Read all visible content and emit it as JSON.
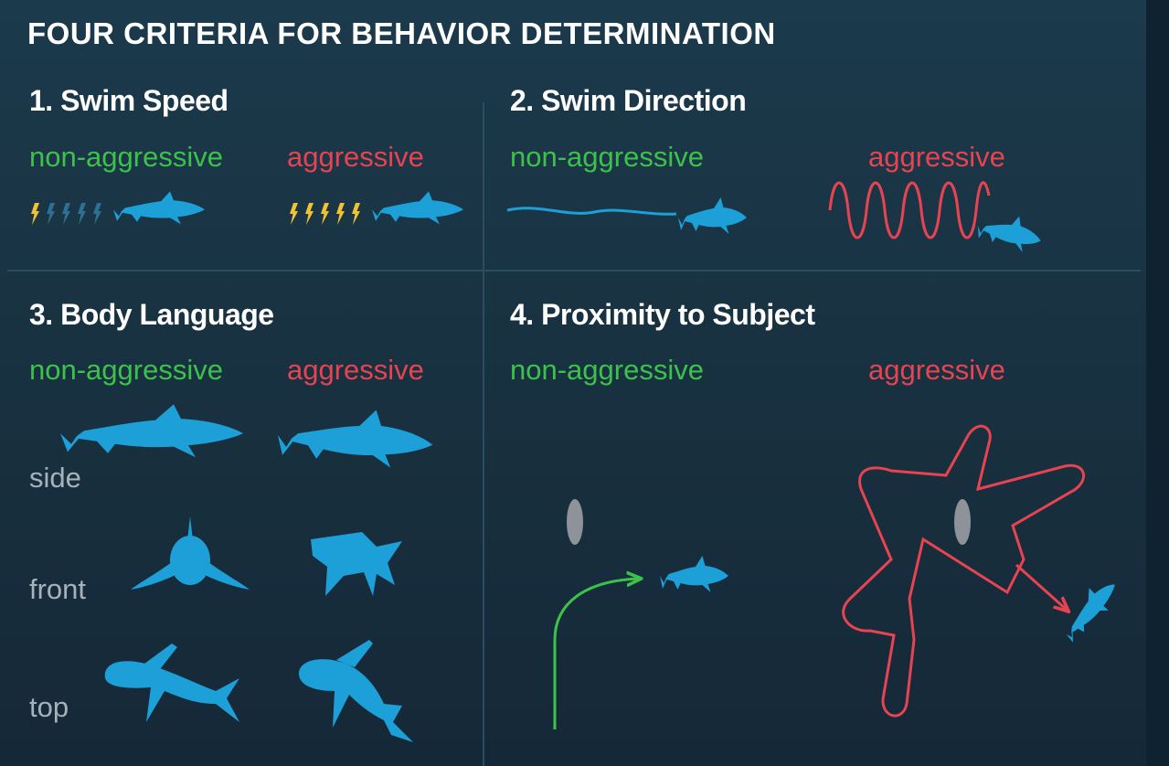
{
  "title": "FOUR CRITERIA FOR BEHAVIOR DETERMINATION",
  "sections": [
    {
      "heading": "1. Swim Speed",
      "non_aggressive": "non-aggressive",
      "aggressive": "aggressive"
    },
    {
      "heading": "2. Swim Direction",
      "non_aggressive": "non-aggressive",
      "aggressive": "aggressive"
    },
    {
      "heading": "3. Body Language",
      "non_aggressive": "non-aggressive",
      "aggressive": "aggressive",
      "views": [
        "side",
        "front",
        "top"
      ]
    },
    {
      "heading": "4. Proximity to Subject",
      "non_aggressive": "non-aggressive",
      "aggressive": "aggressive"
    }
  ],
  "speed": {
    "non_aggressive_lit_bolts": 1,
    "aggressive_lit_bolts": 5,
    "total_bolts": 5
  },
  "colors": {
    "background": "#1b3447",
    "shark": "#1d9fd8",
    "non_aggressive": "#3cc24a",
    "aggressive": "#e84350",
    "bolt_lit": "#f1c232",
    "bolt_dim": "#2f6f95",
    "subject": "#8d9399"
  },
  "icons": [
    "shark-icon",
    "lightning-bolt-icon",
    "subject-marker-icon",
    "arrow-path-icon"
  ]
}
